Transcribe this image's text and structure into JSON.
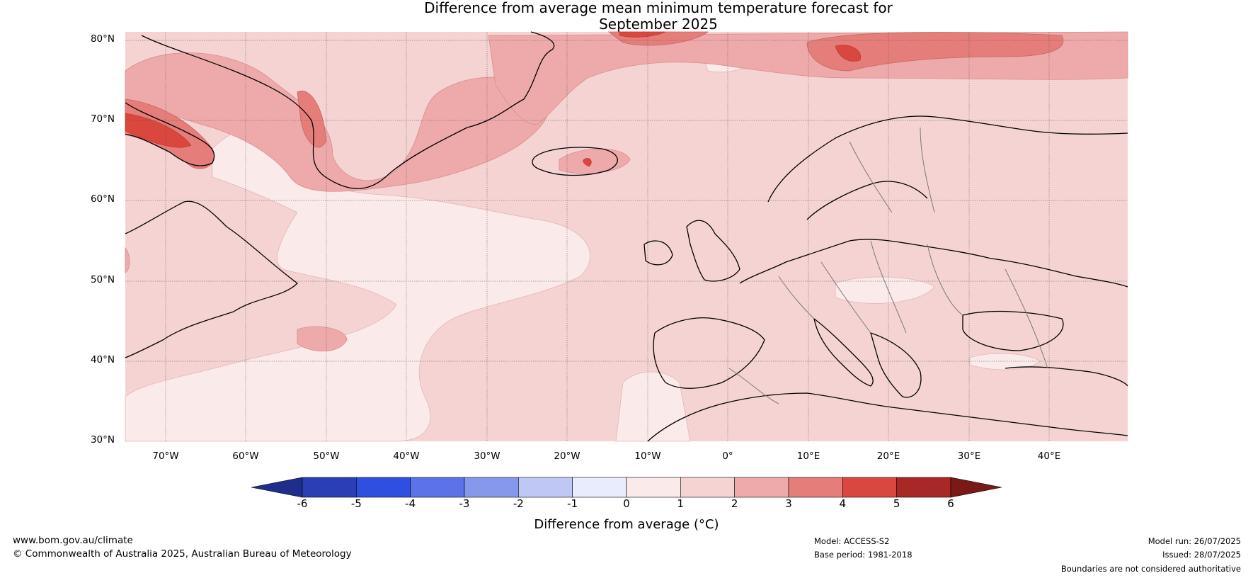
{
  "title_line1": "Difference from average mean minimum temperature forecast for",
  "title_line2": "September 2025",
  "map": {
    "region": "North Atlantic and Europe",
    "lat_range": [
      30,
      81
    ],
    "lon_range": [
      -75,
      50
    ],
    "lat_ticks": [
      "80°N",
      "70°N",
      "60°N",
      "50°N",
      "40°N",
      "30°N"
    ],
    "lon_ticks": [
      "70°W",
      "60°W",
      "50°W",
      "40°W",
      "30°W",
      "20°W",
      "10°W",
      "0°",
      "10°E",
      "20°E",
      "30°E",
      "40°E"
    ],
    "grid": true
  },
  "colorbar": {
    "label": "Difference from average (°C)",
    "ticks": [
      "-6",
      "-5",
      "-4",
      "-3",
      "-2",
      "-1",
      "0",
      "1",
      "2",
      "3",
      "4",
      "5",
      "6"
    ],
    "colors": [
      "#1f2e8c",
      "#2a3fb5",
      "#2f4fe0",
      "#5b73e8",
      "#8698ec",
      "#bfc8f4",
      "#e8ecfc",
      "#fbeaea",
      "#f5d3d3",
      "#eeaaaa",
      "#e57e7a",
      "#d9473e",
      "#a82825",
      "#7a1a18"
    ]
  },
  "footer": {
    "website": "www.bom.gov.au/climate",
    "copyright": "© Commonwealth of Australia 2025, Australian Bureau of Meteorology",
    "model": "Model: ACCESS-S2",
    "base_period": "Base period: 1981-2018",
    "model_run": "Model run: 26/07/2025",
    "issued": "Issued: 28/07/2025",
    "disclaimer": "Boundaries are not considered authoritative"
  }
}
